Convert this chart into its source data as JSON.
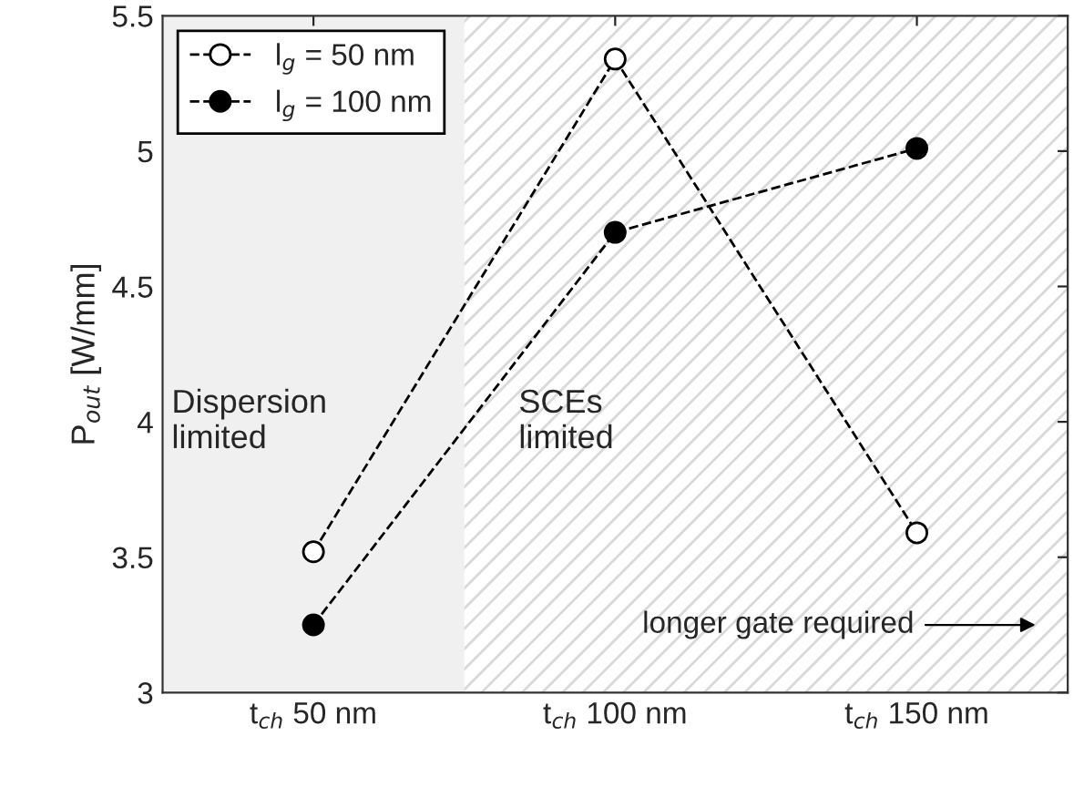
{
  "chart_data": {
    "type": "line",
    "ylabel": "P$_{out}$ [W/mm]",
    "x": [
      50,
      100,
      150
    ],
    "xlim": [
      25,
      175
    ],
    "xticks": [
      {
        "value": 50,
        "label": "t$_{ch}$ 50 nm"
      },
      {
        "value": 100,
        "label": "t$_{ch}$ 100 nm"
      },
      {
        "value": 150,
        "label": "t$_{ch}$ 150 nm"
      }
    ],
    "ylim": [
      3,
      5.5
    ],
    "yticks": [
      3,
      3.5,
      4,
      4.5,
      5,
      5.5
    ],
    "series": [
      {
        "name": "l$_{g}$ = 50 nm",
        "color": "#000000",
        "values": [
          3.52,
          5.34,
          3.59
        ]
      },
      {
        "name": "l$_{g}$ = 100 nm",
        "color": "#000000",
        "values": [
          3.25,
          4.7,
          5.01
        ]
      }
    ],
    "bands": [
      {
        "axis": "x",
        "from": 25,
        "to": 75,
        "label": "Dispersion\nlimited",
        "color": "#f0f0f0"
      },
      {
        "axis": "x",
        "from": 75,
        "to": 175,
        "label": "SCEs\nlimited",
        "color": "#d9d9d9"
      }
    ],
    "annotations": [
      "longer gate required"
    ],
    "marker": "circle",
    "line_style": "dashed",
    "grid": false,
    "legend": "top left"
  }
}
